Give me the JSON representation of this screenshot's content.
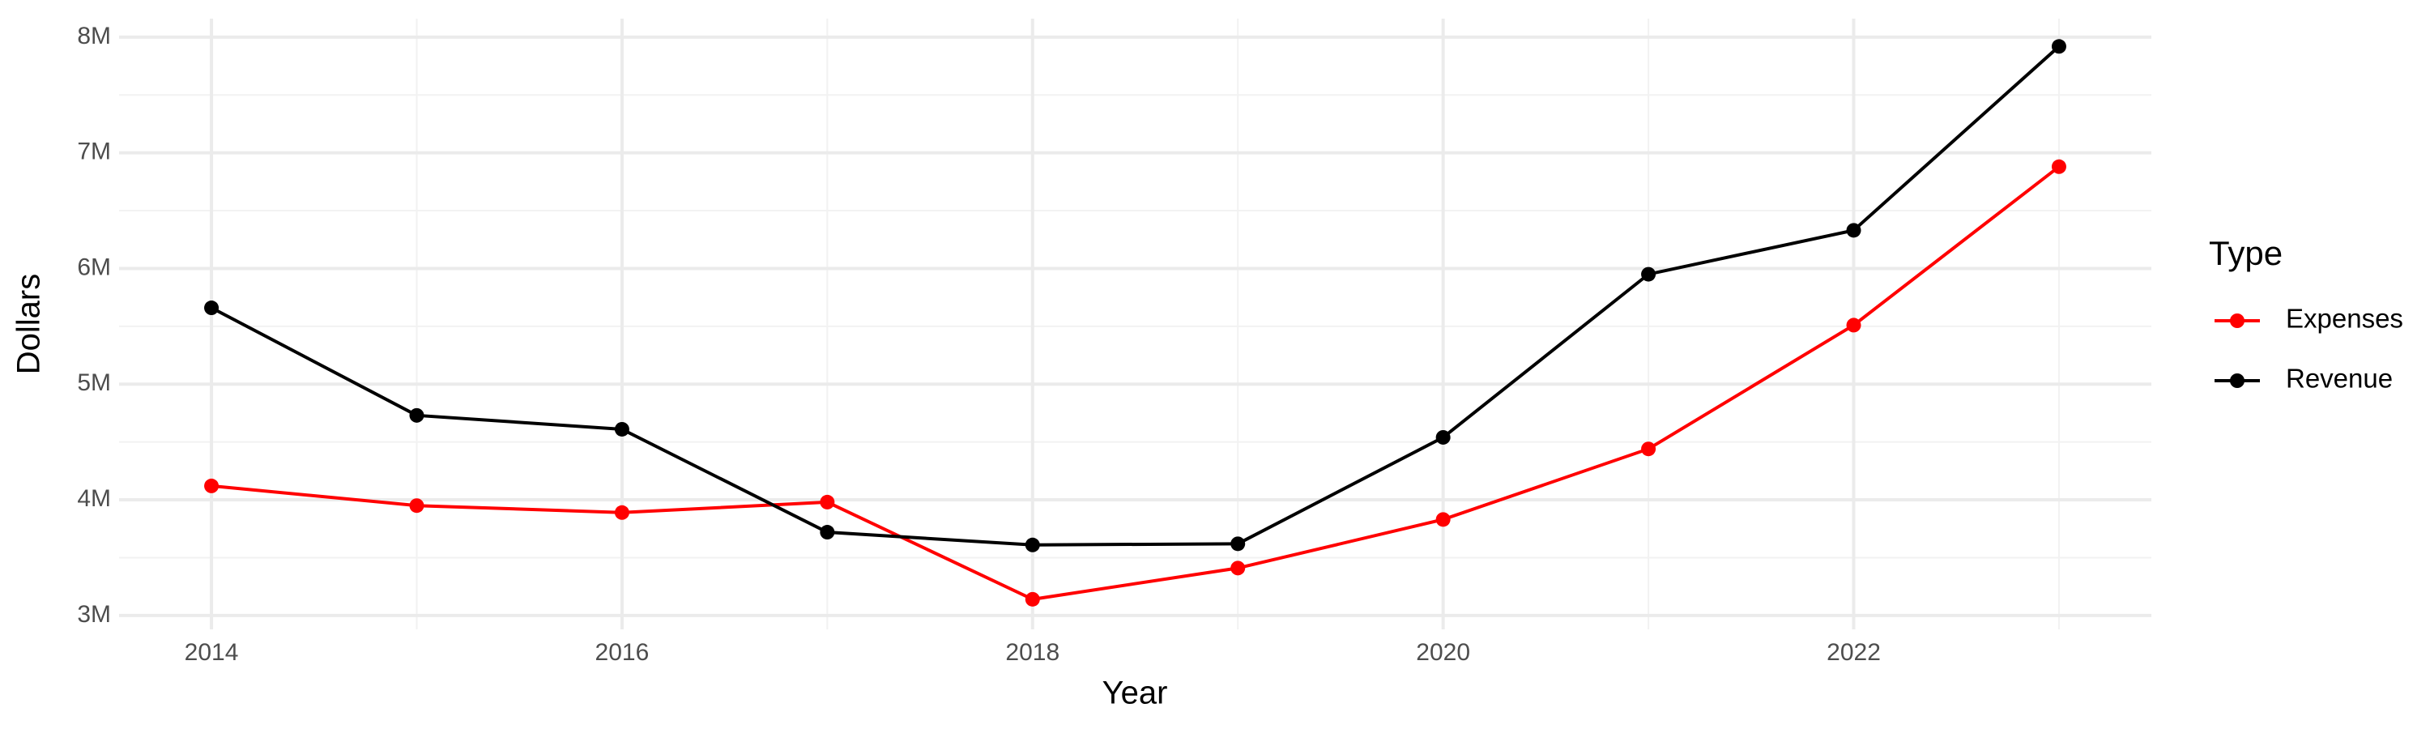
{
  "chart_data": {
    "type": "line",
    "x_label": "Year",
    "y_label": "Dollars",
    "legend_title": "Type",
    "legend_position": "right",
    "x": [
      2014,
      2015,
      2016,
      2017,
      2018,
      2019,
      2020,
      2021,
      2022,
      2023
    ],
    "series": [
      {
        "name": "Expenses",
        "color": "#ff0000",
        "values": [
          4120000,
          3950000,
          3890000,
          3980000,
          3140000,
          3410000,
          3830000,
          4440000,
          5510000,
          6880000
        ]
      },
      {
        "name": "Revenue",
        "color": "#000000",
        "values": [
          5660000,
          4730000,
          4610000,
          3720000,
          3610000,
          3620000,
          4540000,
          5950000,
          6330000,
          7920000
        ]
      }
    ],
    "xlim": [
      2013.55,
      2023.45
    ],
    "ylim": [
      2880000,
      8160000
    ],
    "xticks": [
      2014,
      2016,
      2018,
      2020,
      2022
    ],
    "yticks": [
      {
        "value": 3000000,
        "label": "3M"
      },
      {
        "value": 4000000,
        "label": "4M"
      },
      {
        "value": 5000000,
        "label": "5M"
      },
      {
        "value": 6000000,
        "label": "6M"
      },
      {
        "value": 7000000,
        "label": "7M"
      },
      {
        "value": 8000000,
        "label": "8M"
      }
    ],
    "x_minor_ticks": [
      2015,
      2017,
      2019,
      2021,
      2023
    ],
    "y_minor_ticks": [
      3500000,
      4500000,
      5500000,
      6500000,
      7500000
    ],
    "grid": true
  }
}
